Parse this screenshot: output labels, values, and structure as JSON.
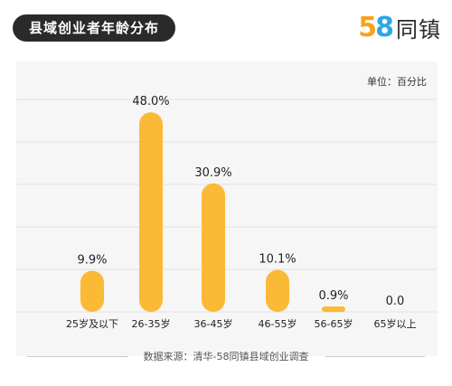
{
  "header": {
    "title": "县域创业者年龄分布",
    "logo_digits": [
      "5",
      "8"
    ],
    "logo_text": "同镇"
  },
  "unit_label": "单位：百分比",
  "footer": {
    "source": "数据来源：清华-58同镇县域创业调查"
  },
  "colors": {
    "bar": "#FBBA35",
    "grid": "#e3e3e3",
    "title_bg": "#2a2a2a"
  },
  "chart_data": {
    "type": "bar",
    "title": "县域创业者年龄分布",
    "categories": [
      "25岁及以下",
      "26-35岁",
      "36-45岁",
      "46-55岁",
      "56-65岁",
      "65岁以上"
    ],
    "values": [
      9.9,
      48.0,
      30.9,
      10.1,
      0.9,
      0.0
    ],
    "value_labels": [
      "9.9%",
      "48.0%",
      "30.9%",
      "10.1%",
      "0.9%",
      "0.0"
    ],
    "ylim": [
      0,
      50
    ],
    "grid": true,
    "unit": "百分比"
  }
}
